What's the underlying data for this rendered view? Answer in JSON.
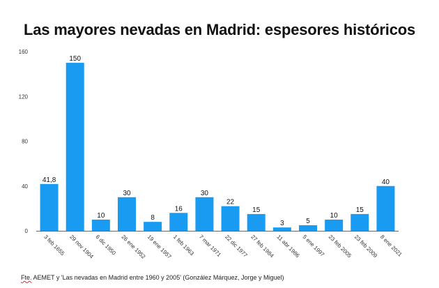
{
  "chart_data": {
    "type": "bar",
    "title": "Las mayores nevadas en Madrid: espesores históricos",
    "categories": [
      "3 feb 1655",
      "29 nov 1904",
      "6 dic 1950",
      "26 ene 1952",
      "19 ene 1957",
      "1 feb 1963",
      "7 mar 1971",
      "22 dic 1977",
      "27 feb 1984",
      "11 abr 1986",
      "5 ene 1997",
      "23 feb 2005",
      "23 feb 2009",
      "8 ene 2021"
    ],
    "values": [
      41.8,
      150,
      10,
      30,
      8,
      16,
      30,
      22,
      15,
      3,
      5,
      10,
      15,
      40
    ],
    "value_labels": [
      "41,8",
      "150",
      "10",
      "30",
      "8",
      "16",
      "30",
      "22",
      "15",
      "3",
      "5",
      "10",
      "15",
      "40"
    ],
    "ylim": [
      0,
      160
    ],
    "yticks": [
      "0",
      "40",
      "80",
      "120",
      "160"
    ],
    "xlabel": "",
    "ylabel": "",
    "grid": false,
    "bar_color": "#1a9bf2"
  },
  "source": {
    "prefix": "Fte.",
    "text": " AEMET y 'Las nevadas en Madrid entre 1960 y 2005' (González Márquez, Jorge y Miguel)"
  }
}
